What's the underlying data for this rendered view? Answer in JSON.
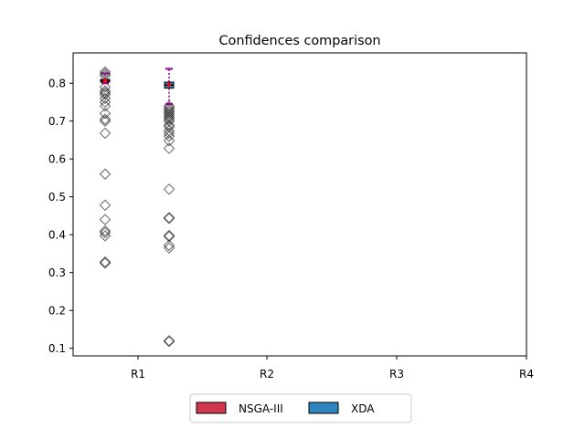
{
  "chart_data": {
    "type": "box",
    "title": "Confidences comparison",
    "xlabel": "",
    "ylabel": "",
    "categories": [
      "R1",
      "R2",
      "R3",
      "R4"
    ],
    "ylim": [
      0.08,
      0.88
    ],
    "yticks": [
      0.1,
      0.2,
      0.3,
      0.4,
      0.5,
      0.6,
      0.7,
      0.8
    ],
    "ytick_labels": [
      "0.1",
      "0.2",
      "0.3",
      "0.4",
      "0.5",
      "0.6",
      "0.7",
      "0.8"
    ],
    "legend_position": "bottom-center",
    "grid": false,
    "series": [
      {
        "name": "NSGA-III",
        "color": "#d1374d",
        "category": "R1",
        "box": {
          "q1": 0.803,
          "median": 0.807,
          "q3": 0.81,
          "whisker_low": 0.8,
          "whisker_high": 0.826,
          "mean": 0.806
        },
        "outliers": [
          0.83,
          0.825,
          0.82,
          0.79,
          0.78,
          0.775,
          0.77,
          0.76,
          0.75,
          0.74,
          0.72,
          0.705,
          0.7,
          0.668,
          0.56,
          0.478,
          0.44,
          0.41,
          0.405,
          0.397,
          0.328,
          0.325
        ]
      },
      {
        "name": "XDA",
        "color": "#2e86c1",
        "category": "R1",
        "box": {
          "q1": 0.787,
          "median": 0.795,
          "q3": 0.803,
          "whisker_low": 0.745,
          "whisker_high": 0.838,
          "mean": 0.796
        },
        "outliers": [
          0.74,
          0.735,
          0.73,
          0.725,
          0.72,
          0.715,
          0.71,
          0.705,
          0.7,
          0.69,
          0.685,
          0.675,
          0.668,
          0.66,
          0.648,
          0.628,
          0.52,
          0.445,
          0.443,
          0.398,
          0.395,
          0.372,
          0.365,
          0.12,
          0.118
        ]
      }
    ]
  }
}
